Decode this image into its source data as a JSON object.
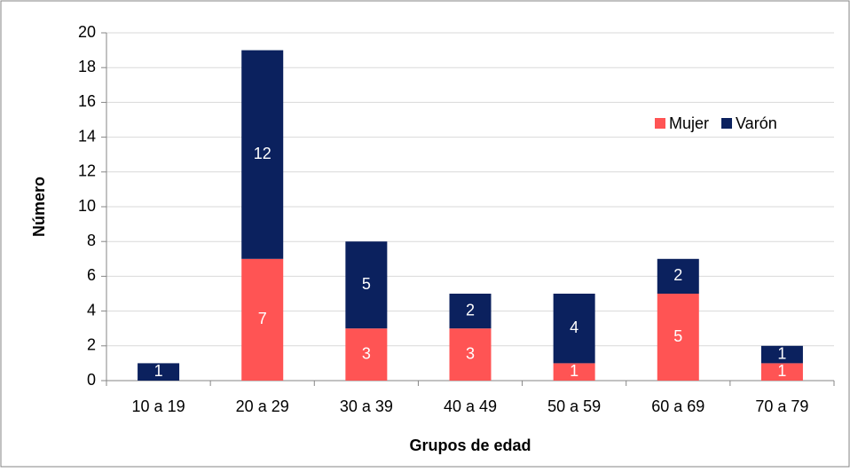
{
  "chart_data": {
    "type": "stacked_bar",
    "x_label": "Grupos de edad",
    "y_label": "Número",
    "categories": [
      "10 a 19",
      "20 a 29",
      "30 a 39",
      "40 a 49",
      "50 a 59",
      "60 a 69",
      "70 a 79"
    ],
    "series": [
      {
        "name": "Mujer",
        "color": "#ff5454",
        "values": [
          0,
          7,
          3,
          3,
          1,
          5,
          1
        ]
      },
      {
        "name": "Varón",
        "color": "#0b215e",
        "values": [
          1,
          12,
          5,
          2,
          4,
          2,
          1
        ]
      }
    ],
    "ylim": [
      0,
      20
    ],
    "yticks": [
      0,
      2,
      4,
      6,
      8,
      10,
      12,
      14,
      16,
      18,
      20
    ],
    "grid": true,
    "legend": "upper right"
  }
}
